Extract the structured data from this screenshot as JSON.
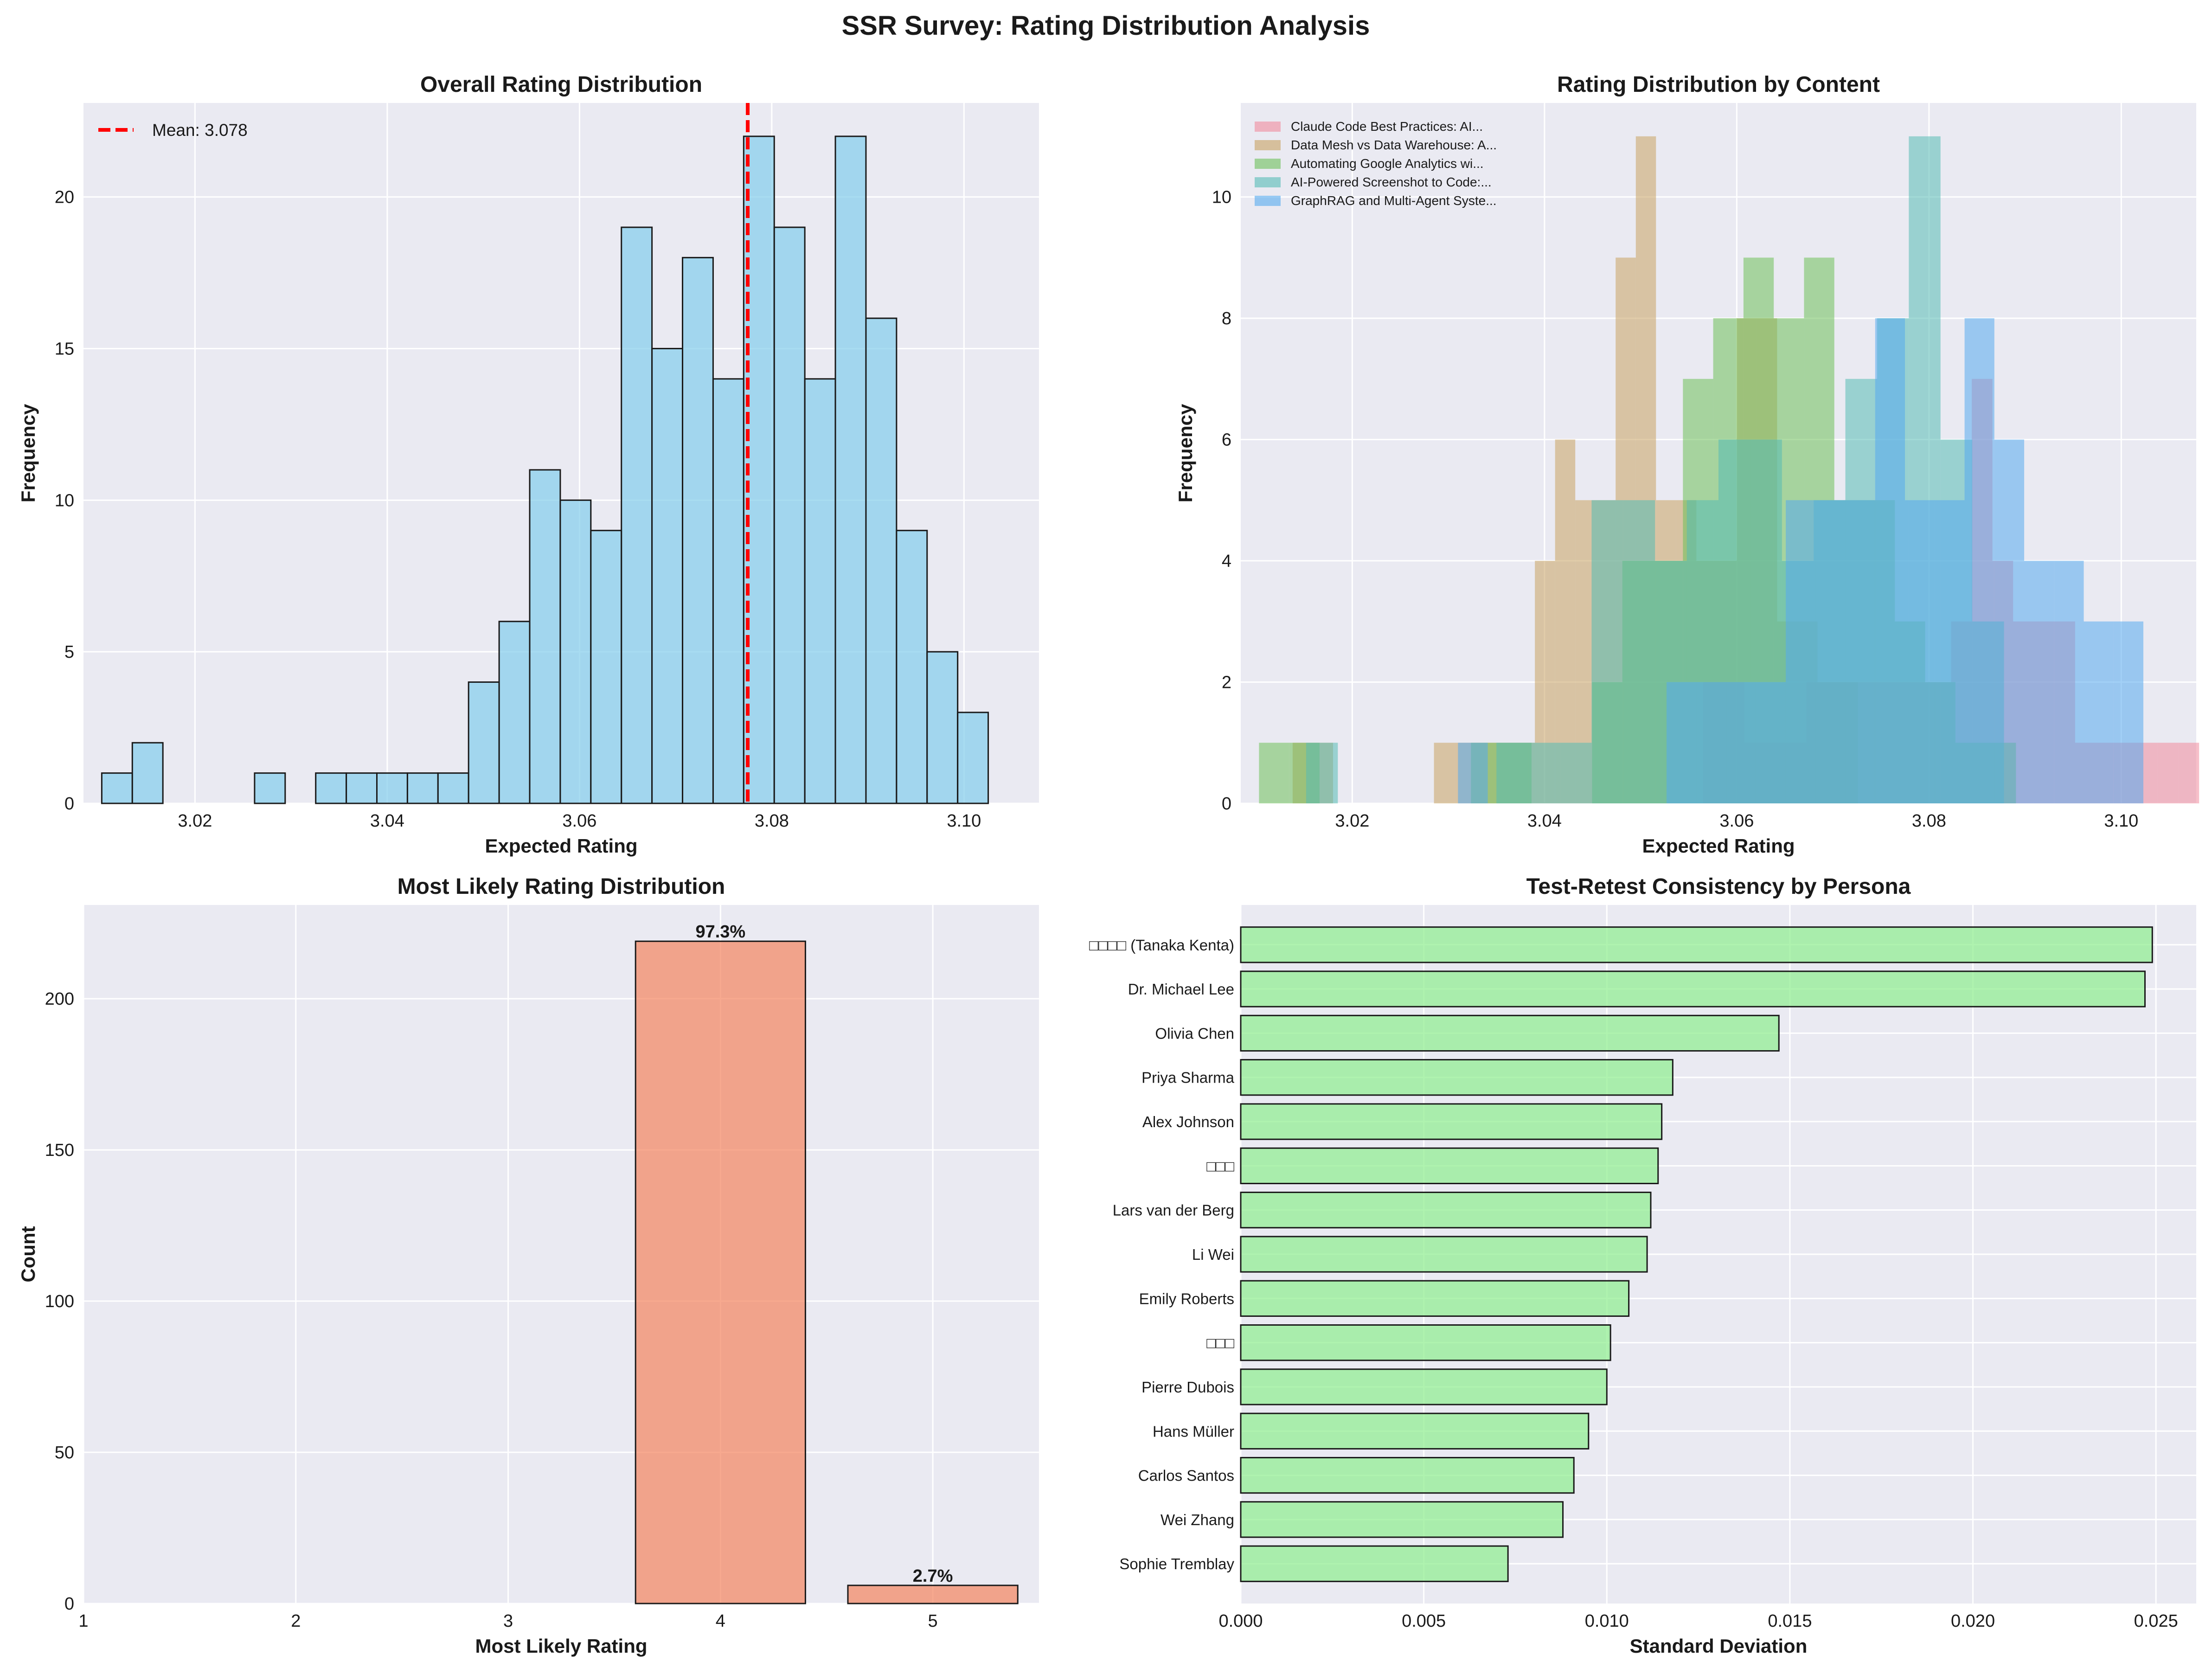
{
  "figure_title": "SSR Survey: Rating Distribution Analysis",
  "colors": {
    "panel_bg": "#EAEAF2",
    "grid": "#ffffff",
    "hist_fill": "#87CEEB",
    "mean_line": "#FF0000",
    "bar_fill": "#F4845F",
    "hbar_fill": "#90EE90",
    "edge": "#1a1a1a"
  },
  "chart_data": [
    {
      "type": "bar",
      "subtype": "histogram",
      "title": "Overall Rating Distribution",
      "xlabel": "Expected Rating",
      "ylabel": "Frequency",
      "xlim": [
        3.0084,
        3.1078
      ],
      "ylim": [
        0,
        23.1
      ],
      "xticks": [
        3.02,
        3.04,
        3.06,
        3.08,
        3.1
      ],
      "xtick_labels": [
        "3.02",
        "3.04",
        "3.06",
        "3.08",
        "3.10"
      ],
      "yticks": [
        0,
        5,
        10,
        15,
        20
      ],
      "ytick_labels": [
        "0",
        "5",
        "10",
        "15",
        "20"
      ],
      "bin_start": 3.0103,
      "bin_width": 0.00318,
      "counts": [
        1,
        2,
        0,
        0,
        0,
        1,
        0,
        1,
        1,
        1,
        1,
        1,
        4,
        6,
        11,
        10,
        9,
        19,
        15,
        18,
        14,
        22,
        19,
        14,
        22,
        16,
        9,
        5,
        3
      ],
      "mean": 3.0775,
      "legend": {
        "label": "Mean: 3.078",
        "position": "top-left"
      }
    },
    {
      "type": "bar",
      "subtype": "overlaid-histogram",
      "title": "Rating Distribution by Content",
      "xlabel": "Expected Rating",
      "ylabel": "Frequency",
      "xlim": [
        3.0084,
        3.1078
      ],
      "ylim": [
        0,
        11.55
      ],
      "xticks": [
        3.02,
        3.04,
        3.06,
        3.08,
        3.1
      ],
      "xtick_labels": [
        "3.02",
        "3.04",
        "3.06",
        "3.08",
        "3.10"
      ],
      "yticks": [
        0,
        2,
        4,
        6,
        8,
        10
      ],
      "ytick_labels": [
        "0",
        "2",
        "4",
        "6",
        "8",
        "10"
      ],
      "legend_position": "top-left",
      "series": [
        {
          "name": "Claude Code Best Practices: AI...",
          "color": "#F08A9C",
          "bin_start": 3.0565,
          "bin_width": 0.00215,
          "counts": [
            2,
            2,
            1,
            1,
            1,
            2,
            2,
            2,
            2,
            2,
            2,
            2,
            3,
            7,
            4,
            3,
            3,
            3,
            1,
            1,
            1,
            1,
            1,
            1
          ]
        },
        {
          "name": "Data Mesh vs Data Warehouse: A...",
          "color": "#C8A262",
          "bin_start": 3.0138,
          "bin_width": 0.0021,
          "counts": [
            1,
            1,
            0,
            0,
            0,
            0,
            0,
            1,
            1,
            1,
            1,
            1,
            4,
            6,
            5,
            5,
            9,
            11,
            5,
            5,
            4,
            4,
            8,
            8,
            3,
            3,
            2,
            2
          ]
        },
        {
          "name": "Automating Google Analytics wi...",
          "color": "#6DBF5A",
          "bin_start": 3.0103,
          "bin_width": 0.00315,
          "counts": [
            1,
            1,
            0,
            0,
            0,
            0,
            0,
            1,
            1,
            0,
            0,
            2,
            4,
            4,
            7,
            8,
            9,
            8,
            9,
            5,
            5,
            3,
            2,
            1,
            1
          ]
        },
        {
          "name": "AI-Powered Screenshot to Code:...",
          "color": "#55BBB5",
          "bin_start": 3.0152,
          "bin_width": 0.0033,
          "counts": [
            1,
            0,
            0,
            0,
            0,
            0,
            1,
            1,
            1,
            5,
            5,
            4,
            5,
            6,
            6,
            4,
            5,
            7,
            8,
            11,
            6,
            3
          ]
        },
        {
          "name": "GraphRAG and Multi-Agent Syste...",
          "color": "#55AAEE",
          "bin_start": 3.031,
          "bin_width": 0.0031,
          "counts": [
            1,
            0,
            0,
            0,
            0,
            0,
            0,
            2,
            2,
            2,
            2,
            5,
            5,
            5,
            8,
            5,
            5,
            8,
            6,
            4,
            4,
            3,
            3
          ]
        }
      ]
    },
    {
      "type": "bar",
      "title": "Most Likely Rating Distribution",
      "xlabel": "Most Likely Rating",
      "ylabel": "Count",
      "xlim": [
        1,
        5.5
      ],
      "ylim": [
        0,
        231
      ],
      "xticks": [
        1,
        2,
        3,
        4,
        5
      ],
      "xtick_labels": [
        "1",
        "2",
        "3",
        "4",
        "5"
      ],
      "yticks": [
        0,
        50,
        100,
        150,
        200
      ],
      "ytick_labels": [
        "0",
        "50",
        "100",
        "150",
        "200"
      ],
      "categories": [
        "4",
        "5"
      ],
      "x": [
        4,
        5
      ],
      "values": [
        219,
        6
      ],
      "bar_width": 0.8,
      "data_labels": [
        "97.3%",
        "2.7%"
      ]
    },
    {
      "type": "bar",
      "orientation": "horizontal",
      "title": "Test-Retest Consistency by Persona",
      "xlabel": "Standard Deviation",
      "ylabel": "",
      "xlim": [
        0,
        0.0261
      ],
      "xticks": [
        0,
        0.005,
        0.01,
        0.015,
        0.02,
        0.025
      ],
      "xtick_labels": [
        "0.000",
        "0.005",
        "0.010",
        "0.015",
        "0.020",
        "0.025"
      ],
      "categories": [
        "□□□□ (Tanaka Kenta)",
        "Dr. Michael Lee",
        "Olivia Chen",
        "Priya Sharma",
        "Alex Johnson",
        "□□□",
        "Lars van der Berg",
        "Li Wei",
        "Emily Roberts",
        "□□□",
        "Pierre Dubois",
        "Hans Müller",
        "Carlos Santos",
        "Wei Zhang",
        "Sophie Tremblay"
      ],
      "values": [
        0.0249,
        0.0247,
        0.0147,
        0.0118,
        0.0115,
        0.0114,
        0.0112,
        0.0111,
        0.0106,
        0.0101,
        0.01,
        0.0095,
        0.0091,
        0.0088,
        0.0073
      ]
    }
  ]
}
